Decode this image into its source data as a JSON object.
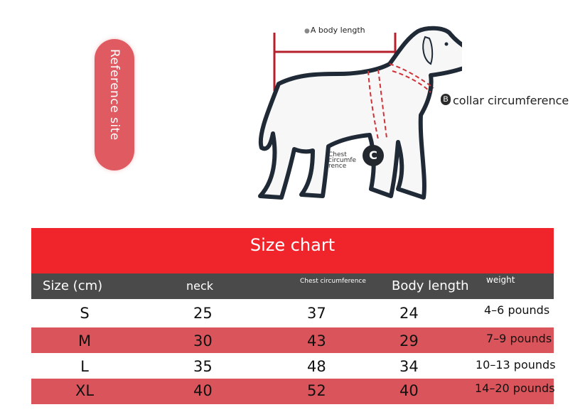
{
  "reference": {
    "label": "Reference site"
  },
  "diagram": {
    "a_label": "A body length",
    "b_marker": "B",
    "b_label": "collar circumference",
    "c_marker": "C",
    "c_label": "Chest circumfe rence"
  },
  "size_chart": {
    "title": "Size chart",
    "headers": {
      "size": "Size (cm)",
      "neck": "neck",
      "chest": "Chest circumference",
      "body": "Body length",
      "weight": "weight"
    },
    "rows": [
      {
        "size": "S",
        "neck": "25",
        "chest": "37",
        "body": "24",
        "weight": "4–6 pounds"
      },
      {
        "size": "M",
        "neck": "30",
        "chest": "43",
        "body": "29",
        "weight": "7–9 pounds"
      },
      {
        "size": "L",
        "neck": "35",
        "chest": "48",
        "body": "34",
        "weight": "10–13 pounds"
      },
      {
        "size": "XL",
        "neck": "40",
        "chest": "52",
        "body": "40",
        "weight": "14–20 pounds"
      }
    ]
  },
  "colors": {
    "header_red": "#f0252c",
    "row_red": "#d9555b",
    "header_gray": "#4a4a4a",
    "pill_red": "#e05a61"
  }
}
